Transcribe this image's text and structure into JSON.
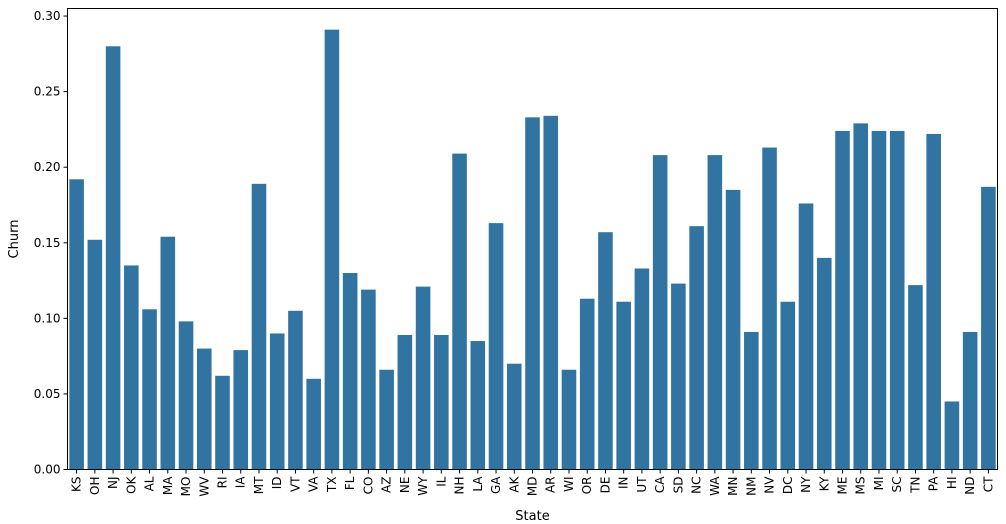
{
  "chart_data": {
    "type": "bar",
    "xlabel": "State",
    "ylabel": "Churn",
    "ylim": [
      0,
      0.305
    ],
    "yticks": [
      0.0,
      0.05,
      0.1,
      0.15,
      0.2,
      0.25,
      0.3
    ],
    "ytick_labels": [
      "0.00",
      "0.05",
      "0.10",
      "0.15",
      "0.20",
      "0.25",
      "0.30"
    ],
    "grid": false,
    "bar_color": "#3274a1",
    "categories": [
      "KS",
      "OH",
      "NJ",
      "OK",
      "AL",
      "MA",
      "MO",
      "WV",
      "RI",
      "IA",
      "MT",
      "ID",
      "VT",
      "VA",
      "TX",
      "FL",
      "CO",
      "AZ",
      "NE",
      "WY",
      "IL",
      "NH",
      "LA",
      "GA",
      "AK",
      "MD",
      "AR",
      "WI",
      "OR",
      "DE",
      "IN",
      "UT",
      "CA",
      "SD",
      "NC",
      "WA",
      "MN",
      "NM",
      "NV",
      "DC",
      "NY",
      "KY",
      "ME",
      "MS",
      "MI",
      "SC",
      "TN",
      "PA",
      "HI",
      "ND",
      "CT"
    ],
    "values": [
      0.192,
      0.152,
      0.28,
      0.135,
      0.106,
      0.154,
      0.098,
      0.08,
      0.062,
      0.079,
      0.189,
      0.09,
      0.105,
      0.06,
      0.291,
      0.13,
      0.119,
      0.066,
      0.089,
      0.121,
      0.089,
      0.209,
      0.085,
      0.163,
      0.07,
      0.233,
      0.234,
      0.066,
      0.113,
      0.157,
      0.111,
      0.133,
      0.208,
      0.123,
      0.161,
      0.208,
      0.185,
      0.091,
      0.213,
      0.111,
      0.176,
      0.14,
      0.224,
      0.229,
      0.224,
      0.224,
      0.122,
      0.222,
      0.045,
      0.091,
      0.187
    ]
  }
}
